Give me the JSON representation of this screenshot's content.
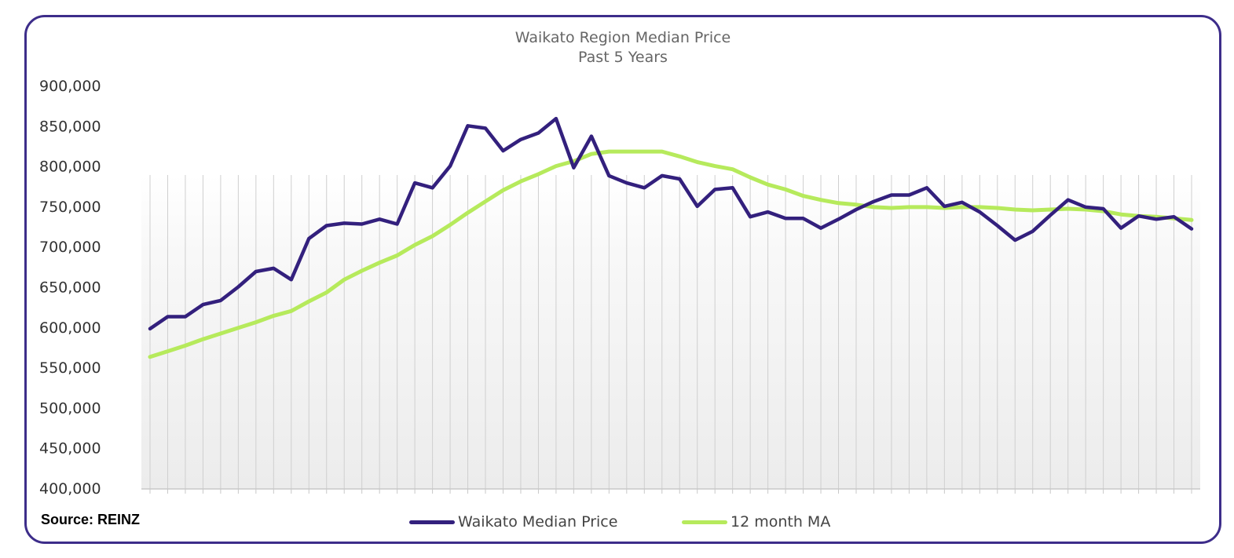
{
  "source_label": "Source: REINZ",
  "chart_data": {
    "type": "line",
    "title": "Waikato Region Median Price",
    "subtitle": "Past 5 Years",
    "xlabel": "",
    "ylabel": "",
    "ylim": [
      400000,
      900000
    ],
    "y_ticks": [
      "400,000",
      "450,000",
      "500,000",
      "550,000",
      "600,000",
      "650,000",
      "700,000",
      "750,000",
      "800,000",
      "850,000",
      "900,000"
    ],
    "y_tick_values": [
      400000,
      450000,
      500000,
      550000,
      600000,
      650000,
      700000,
      750000,
      800000,
      850000,
      900000
    ],
    "grid": "vertical",
    "legend_position": "bottom",
    "series": [
      {
        "name": "Waikato Median Price",
        "color": "#33207d",
        "values": [
          598000,
          613000,
          613000,
          628000,
          633000,
          650000,
          669000,
          673000,
          659000,
          710000,
          726000,
          729000,
          728000,
          734000,
          728000,
          779000,
          773000,
          800000,
          850000,
          847000,
          819000,
          833000,
          841000,
          859000,
          798000,
          837000,
          788000,
          779000,
          773000,
          788000,
          784000,
          750000,
          771000,
          773000,
          737000,
          743000,
          735000,
          735000,
          723000,
          734000,
          746000,
          756000,
          764000,
          764000,
          773000,
          750000,
          755000,
          743000,
          726000,
          708000,
          719000,
          739000,
          758000,
          749000,
          747000,
          723000,
          738000,
          734000,
          737000,
          722000
        ]
      },
      {
        "name": "12 month MA",
        "color": "#b6ea5c",
        "values": [
          563000,
          570000,
          577000,
          585000,
          592000,
          599000,
          606000,
          614000,
          620000,
          632000,
          643000,
          659000,
          670000,
          680000,
          689000,
          702000,
          713000,
          727000,
          742000,
          756000,
          770000,
          781000,
          790000,
          800000,
          806000,
          815000,
          818000,
          818000,
          818000,
          818000,
          812000,
          805000,
          800000,
          796000,
          786000,
          777000,
          771000,
          763000,
          758000,
          754000,
          752000,
          749000,
          748000,
          749000,
          749000,
          748000,
          749000,
          749000,
          748000,
          746000,
          745000,
          746000,
          747000,
          746000,
          744000,
          740000,
          738000,
          737000,
          735000,
          733000
        ]
      }
    ]
  }
}
